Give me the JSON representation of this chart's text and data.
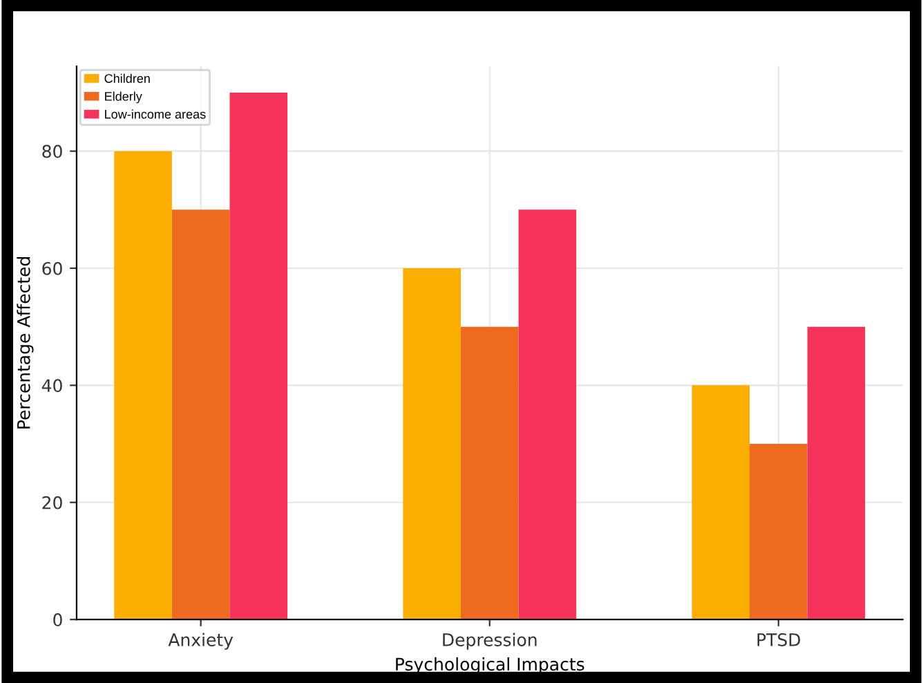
{
  "chart_data": {
    "type": "bar",
    "xlabel": "Psychological Impacts",
    "ylabel": "Percentage Affected",
    "categories": [
      "Anxiety",
      "Depression",
      "PTSD"
    ],
    "series": [
      {
        "name": "Children",
        "color": "#fbae00",
        "values": [
          80,
          60,
          40
        ]
      },
      {
        "name": "Elderly",
        "color": "#ee6a1f",
        "values": [
          70,
          50,
          30
        ]
      },
      {
        "name": "Low-income areas",
        "color": "#f5325a",
        "values": [
          90,
          70,
          50
        ]
      }
    ],
    "ylim": [
      0,
      94.5
    ],
    "yticks": [
      0,
      20,
      40,
      60,
      80
    ],
    "grid": true,
    "legend": "top left"
  }
}
